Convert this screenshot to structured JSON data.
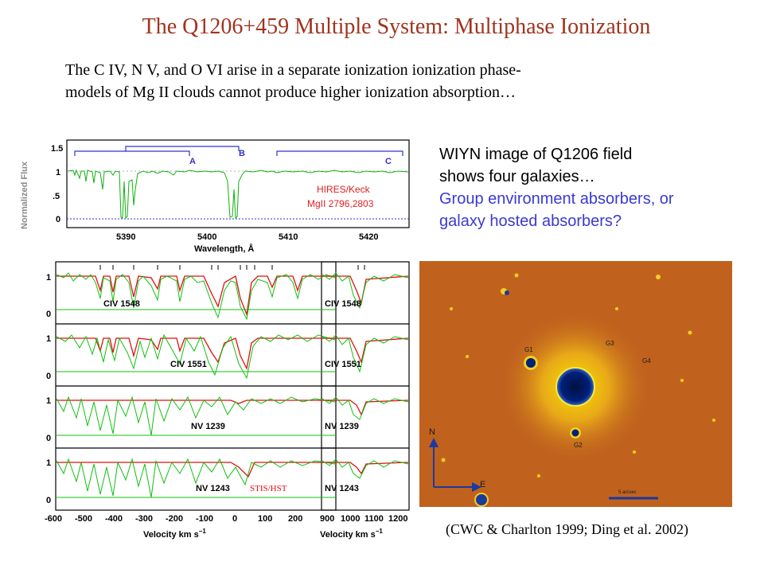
{
  "title": "The Q1206+459 Multiple System: Multiphase Ionization",
  "intro": {
    "line1": "The C IV, N V, and  O VI arise in a separate ionization ionization phase-",
    "line2": "models of Mg II clouds cannot produce higher ionization absorption…"
  },
  "wiyn_text": {
    "line1": "WIYN image of Q1206 field",
    "line2": "shows four galaxies…",
    "line3": "Group environment absorbers, or",
    "line4": "galaxy hosted absorbers?"
  },
  "citation": "(CWC & Charlton 1999; Ding et al. 2002)",
  "colors": {
    "title": "#a0341f",
    "question": "#3a3ad0",
    "model": "#e01010",
    "data": "#10c010",
    "image_bg": "#c0621e"
  },
  "spectrum": {
    "ylabel": "Normalized Flux",
    "xlabel": "Wavelength, Å",
    "yticks": [
      "1.5",
      "1",
      ".5",
      "0"
    ],
    "xticks": [
      "5390",
      "5400",
      "5410",
      "5420"
    ],
    "instrument": "HIRES/Keck",
    "line_id": "MgII 2796,2803",
    "systems": [
      "A",
      "B",
      "C"
    ]
  },
  "velocity_panels": {
    "left_xticks": [
      "-600",
      "-500",
      "-400",
      "-300",
      "-200",
      "-100",
      "0",
      "100",
      "200"
    ],
    "right_xticks": [
      "900",
      "1000",
      "1100",
      "1200"
    ],
    "xlabel": "Velocity  km  s",
    "xlabel_exp": "−1",
    "yticks": [
      "1",
      "0"
    ],
    "panels_left": [
      "CIV 1548",
      "CIV 1551",
      "NV 1239",
      "NV 1243"
    ],
    "panels_right": [
      "CIV 1548",
      "CIV 1551",
      "NV 1239",
      "NV 1243"
    ],
    "instrument": "STIS/HST"
  },
  "galaxy_image": {
    "labels": [
      "G1",
      "G2",
      "G3",
      "G4"
    ],
    "north": "N",
    "east": "E",
    "scale_bar": "5 arcsec"
  }
}
